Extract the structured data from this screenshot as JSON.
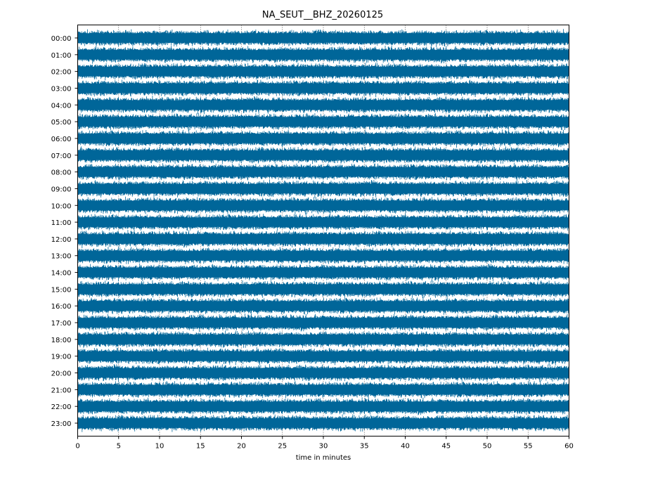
{
  "chart_data": {
    "type": "line",
    "title": "NA_SEUT__BHZ_20260125",
    "xlabel": "time in minutes",
    "ylabel": "",
    "xlim": [
      0,
      60
    ],
    "x_ticks": [
      0,
      5,
      10,
      15,
      20,
      25,
      30,
      35,
      40,
      45,
      50,
      55,
      60
    ],
    "y_tick_labels": [
      "00:00",
      "01:00",
      "02:00",
      "03:00",
      "04:00",
      "05:00",
      "06:00",
      "07:00",
      "08:00",
      "09:00",
      "10:00",
      "11:00",
      "12:00",
      "13:00",
      "14:00",
      "15:00",
      "16:00",
      "17:00",
      "18:00",
      "19:00",
      "20:00",
      "21:00",
      "22:00",
      "23:00"
    ],
    "grid": "vertical dotted at x ticks",
    "trace_color": "#006699",
    "legend": "none"
  }
}
